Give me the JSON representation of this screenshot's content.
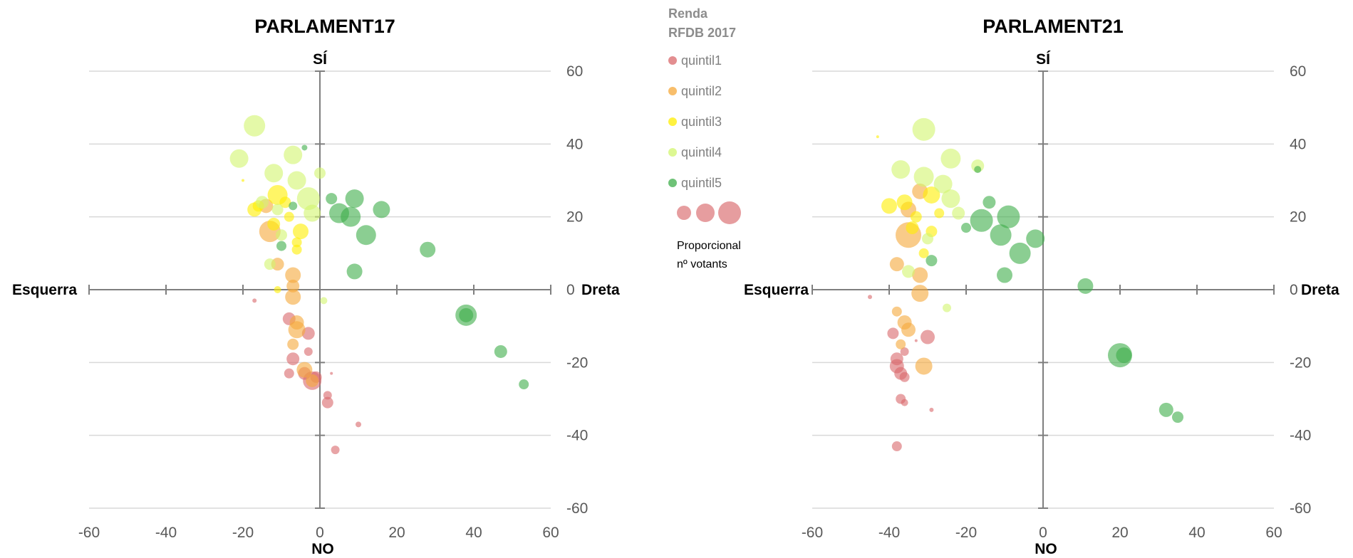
{
  "legend": {
    "title_line1": "Renda",
    "title_line2": "RFDB 2017",
    "items": [
      {
        "label": "quintil1",
        "color": "#d9686b"
      },
      {
        "label": "quintil2",
        "color": "#f5a83a"
      },
      {
        "label": "quintil3",
        "color": "#ffee00"
      },
      {
        "label": "quintil4",
        "color": "#d2f56e"
      },
      {
        "label": "quintil5",
        "color": "#3eae4a"
      }
    ],
    "size_note_line1": "Proporcional",
    "size_note_line2": "nº votants"
  },
  "chart_data": [
    {
      "type": "scatter",
      "title": "PARLAMENT17",
      "axis_words": {
        "top": "SÍ",
        "bottom": "NO",
        "left": "Esquerra",
        "right": "Dreta"
      },
      "xlim": [
        -60,
        60
      ],
      "ylim": [
        -60,
        60
      ],
      "x_ticks": [
        "-60",
        "-40",
        "-20",
        "0",
        "20",
        "40",
        "60"
      ],
      "y_ticks": [
        "60",
        "40",
        "20",
        "0",
        "-20",
        "-40",
        "-60"
      ],
      "grid": "horizontal",
      "series": [
        {
          "name": "quintil1",
          "points": [
            [
              -17,
              -3,
              3
            ],
            [
              -8,
              -8,
              9
            ],
            [
              -3,
              -12,
              9
            ],
            [
              -7,
              -19,
              9
            ],
            [
              -3,
              -17,
              6
            ],
            [
              -8,
              -23,
              7
            ],
            [
              -4,
              -23,
              9
            ],
            [
              -2,
              -25,
              13
            ],
            [
              -1,
              -24,
              8
            ],
            [
              3,
              -23,
              2
            ],
            [
              2,
              -29,
              6
            ],
            [
              2,
              -31,
              8
            ],
            [
              10,
              -37,
              4
            ],
            [
              4,
              -44,
              6
            ]
          ]
        },
        {
          "name": "quintil2",
          "points": [
            [
              -14,
              23,
              10
            ],
            [
              -13,
              16,
              15
            ],
            [
              -11,
              7,
              9
            ],
            [
              -7,
              4,
              11
            ],
            [
              -7,
              1,
              9
            ],
            [
              -7,
              -2,
              11
            ],
            [
              -6,
              -9,
              10
            ],
            [
              -6,
              -11,
              12
            ],
            [
              -7,
              -15,
              8
            ],
            [
              -4,
              -22,
              11
            ],
            [
              -2,
              -25,
              9
            ]
          ]
        },
        {
          "name": "quintil3",
          "points": [
            [
              -17,
              22,
              10
            ],
            [
              -16,
              23,
              8
            ],
            [
              -12,
              18,
              9
            ],
            [
              -11,
              26,
              14
            ],
            [
              -9,
              24,
              8
            ],
            [
              -8,
              20,
              7
            ],
            [
              -5,
              16,
              11
            ],
            [
              -6,
              13,
              7
            ],
            [
              -6,
              11,
              7
            ],
            [
              -11,
              0,
              5
            ],
            [
              -20,
              30,
              2
            ]
          ]
        },
        {
          "name": "quintil4",
          "points": [
            [
              -17,
              45,
              15
            ],
            [
              -21,
              36,
              13
            ],
            [
              -12,
              32,
              13
            ],
            [
              -7,
              37,
              13
            ],
            [
              -6,
              30,
              13
            ],
            [
              -3,
              25,
              16
            ],
            [
              -2,
              21,
              12
            ],
            [
              0,
              32,
              8
            ],
            [
              -11,
              22,
              8
            ],
            [
              -10,
              15,
              8
            ],
            [
              -13,
              7,
              8
            ],
            [
              1,
              -3,
              5
            ],
            [
              -15,
              24,
              9
            ]
          ]
        },
        {
          "name": "quintil5",
          "points": [
            [
              -4,
              39,
              4
            ],
            [
              -7,
              23,
              6
            ],
            [
              -10,
              12,
              7
            ],
            [
              5,
              21,
              14
            ],
            [
              8,
              20,
              14
            ],
            [
              9,
              25,
              13
            ],
            [
              3,
              25,
              8
            ],
            [
              16,
              22,
              12
            ],
            [
              12,
              15,
              14
            ],
            [
              9,
              5,
              11
            ],
            [
              28,
              11,
              11
            ],
            [
              38,
              -7,
              15
            ],
            [
              38,
              -7,
              10
            ],
            [
              47,
              -17,
              9
            ],
            [
              53,
              -26,
              7
            ]
          ]
        }
      ]
    },
    {
      "type": "scatter",
      "title": "PARLAMENT21",
      "axis_words": {
        "top": "SÍ",
        "bottom": "NO",
        "left": "Esquerra",
        "right": "Dreta"
      },
      "xlim": [
        -60,
        60
      ],
      "ylim": [
        -60,
        60
      ],
      "x_ticks": [
        "-60",
        "-40",
        "-20",
        "0",
        "20",
        "40",
        "60"
      ],
      "y_ticks": [
        "60",
        "40",
        "20",
        "0",
        "-20",
        "-40",
        "-60"
      ],
      "grid": "horizontal",
      "series": [
        {
          "name": "quintil1",
          "points": [
            [
              -45,
              -2,
              3
            ],
            [
              -39,
              -12,
              8
            ],
            [
              -38,
              -19,
              9
            ],
            [
              -38,
              -21,
              10
            ],
            [
              -37,
              -23,
              9
            ],
            [
              -36,
              -24,
              7
            ],
            [
              -36,
              -17,
              6
            ],
            [
              -30,
              -13,
              10
            ],
            [
              -33,
              -14,
              2
            ],
            [
              -37,
              -30,
              7
            ],
            [
              -36,
              -31,
              5
            ],
            [
              -29,
              -33,
              3
            ],
            [
              -38,
              -43,
              7
            ]
          ]
        },
        {
          "name": "quintil2",
          "points": [
            [
              -35,
              15,
              18
            ],
            [
              -32,
              27,
              11
            ],
            [
              -35,
              22,
              11
            ],
            [
              -38,
              7,
              10
            ],
            [
              -32,
              4,
              11
            ],
            [
              -32,
              -1,
              12
            ],
            [
              -36,
              -9,
              10
            ],
            [
              -35,
              -11,
              10
            ],
            [
              -38,
              -6,
              7
            ],
            [
              -37,
              -15,
              7
            ],
            [
              -31,
              -21,
              12
            ]
          ]
        },
        {
          "name": "quintil3",
          "points": [
            [
              -40,
              23,
              11
            ],
            [
              -36,
              24,
              11
            ],
            [
              -34,
              17,
              9
            ],
            [
              -33,
              20,
              8
            ],
            [
              -29,
              26,
              12
            ],
            [
              -29,
              16,
              8
            ],
            [
              -31,
              10,
              7
            ],
            [
              -27,
              21,
              7
            ],
            [
              -43,
              42,
              2
            ]
          ]
        },
        {
          "name": "quintil4",
          "points": [
            [
              -31,
              44,
              16
            ],
            [
              -37,
              33,
              13
            ],
            [
              -31,
              31,
              14
            ],
            [
              -26,
              29,
              13
            ],
            [
              -24,
              25,
              13
            ],
            [
              -24,
              36,
              14
            ],
            [
              -22,
              21,
              9
            ],
            [
              -17,
              34,
              9
            ],
            [
              -30,
              14,
              8
            ],
            [
              -35,
              5,
              9
            ],
            [
              -25,
              -5,
              6
            ]
          ]
        },
        {
          "name": "quintil5",
          "points": [
            [
              -17,
              33,
              5
            ],
            [
              -14,
              24,
              9
            ],
            [
              -9,
              20,
              16
            ],
            [
              -16,
              19,
              16
            ],
            [
              -11,
              15,
              15
            ],
            [
              -6,
              10,
              15
            ],
            [
              -2,
              14,
              13
            ],
            [
              -10,
              4,
              11
            ],
            [
              -20,
              17,
              7
            ],
            [
              -29,
              8,
              8
            ],
            [
              11,
              1,
              11
            ],
            [
              20,
              -18,
              17
            ],
            [
              21,
              -18,
              11
            ],
            [
              32,
              -33,
              10
            ],
            [
              35,
              -35,
              8
            ]
          ]
        }
      ]
    }
  ]
}
